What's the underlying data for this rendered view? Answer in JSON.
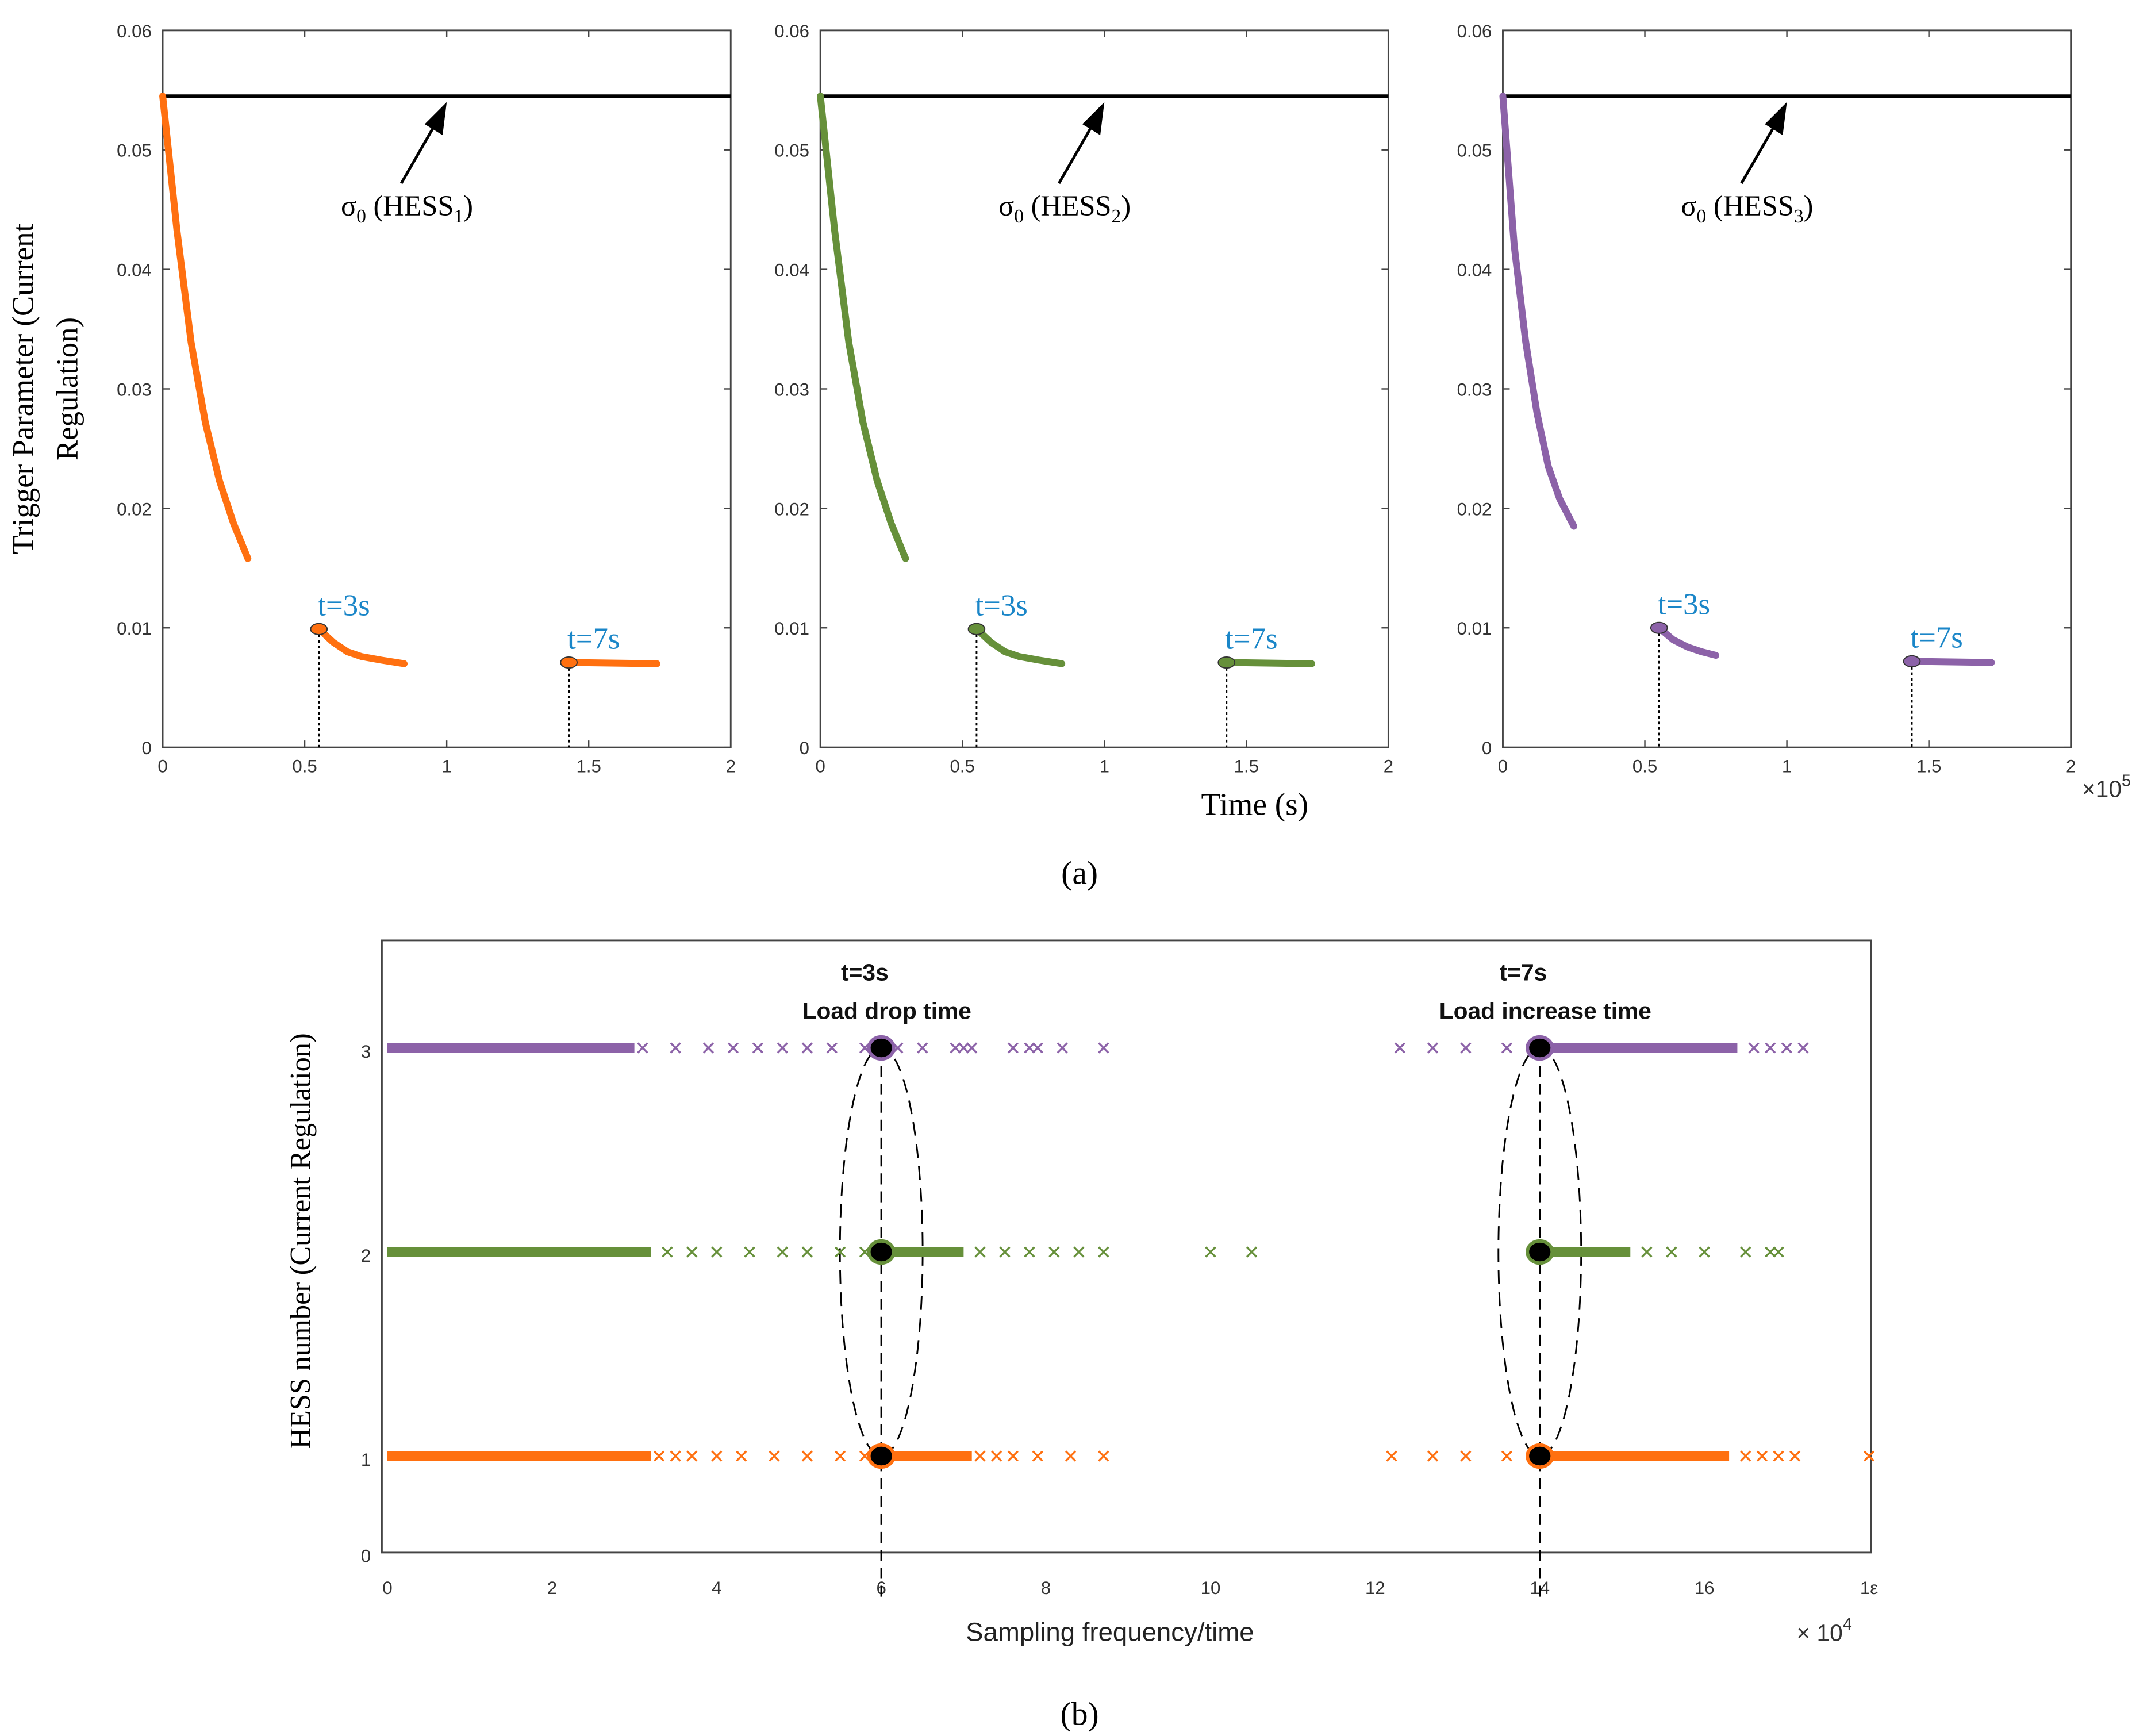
{
  "colors": {
    "hess1": "#ff7010",
    "hess2": "#66903a",
    "hess3": "#8c62a8",
    "annotation": "#1a86c8",
    "threshold": "#000000"
  },
  "figure": {
    "label_a": "(a)",
    "label_b": "(b)"
  },
  "chart_data": [
    {
      "type": "line",
      "panel": "a",
      "ylabel_line1": "Trigger Parameter (Current",
      "ylabel_line2": "Regulation)",
      "xlabel": "Time (s)",
      "x_multiplier": "×10",
      "x_multiplier_exp": "5",
      "xlim": [
        0,
        2
      ],
      "ylim": [
        0,
        0.06
      ],
      "xticks": [
        "0",
        "0.5",
        "1",
        "1.5",
        "2"
      ],
      "xtick_values": [
        0,
        0.5,
        1,
        1.5,
        2
      ],
      "yticks": [
        "0",
        "0.01",
        "0.02",
        "0.03",
        "0.04",
        "0.05",
        "0.06"
      ],
      "ytick_values": [
        0,
        0.01,
        0.02,
        0.03,
        0.04,
        0.05,
        0.06
      ],
      "threshold": 0.0545,
      "subplots": [
        {
          "name": "HESS1",
          "threshold_label": "σ",
          "threshold_sub0": "0",
          "threshold_label2": " (HESS",
          "threshold_sub": "1",
          "threshold_close": ")",
          "color_key": "hess1",
          "segments": [
            [
              [
                0,
                0.0545
              ],
              [
                0.05,
                0.0433
              ],
              [
                0.1,
                0.0339
              ],
              [
                0.15,
                0.0272
              ],
              [
                0.2,
                0.0223
              ],
              [
                0.25,
                0.0187
              ],
              [
                0.3,
                0.0158
              ]
            ],
            [
              [
                0.55,
                0.0099
              ],
              [
                0.6,
                0.0088
              ],
              [
                0.65,
                0.008
              ],
              [
                0.7,
                0.0076
              ],
              [
                0.77,
                0.0073
              ],
              [
                0.85,
                0.007
              ]
            ],
            [
              [
                1.43,
                0.0071
              ],
              [
                1.74,
                0.007
              ]
            ]
          ],
          "events": [
            {
              "x": 0.55,
              "y": 0.0099,
              "label": "t=3s"
            },
            {
              "x": 1.43,
              "y": 0.0071,
              "label": "t=7s"
            }
          ]
        },
        {
          "name": "HESS2",
          "threshold_label": "σ",
          "threshold_sub0": "0",
          "threshold_label2": " (HESS",
          "threshold_sub": "2",
          "threshold_close": ")",
          "color_key": "hess2",
          "segments": [
            [
              [
                0,
                0.0545
              ],
              [
                0.05,
                0.0433
              ],
              [
                0.1,
                0.0339
              ],
              [
                0.15,
                0.0272
              ],
              [
                0.2,
                0.0223
              ],
              [
                0.25,
                0.0187
              ],
              [
                0.3,
                0.0158
              ]
            ],
            [
              [
                0.55,
                0.0099
              ],
              [
                0.6,
                0.0088
              ],
              [
                0.65,
                0.008
              ],
              [
                0.7,
                0.0076
              ],
              [
                0.77,
                0.0073
              ],
              [
                0.85,
                0.007
              ]
            ],
            [
              [
                1.43,
                0.0071
              ],
              [
                1.73,
                0.007
              ]
            ]
          ],
          "events": [
            {
              "x": 0.55,
              "y": 0.0099,
              "label": "t=3s"
            },
            {
              "x": 1.43,
              "y": 0.0071,
              "label": "t=7s"
            }
          ]
        },
        {
          "name": "HESS3",
          "threshold_label": "σ",
          "threshold_sub0": "0",
          "threshold_label2": " (HESS",
          "threshold_sub": "3",
          "threshold_close": ")",
          "color_key": "hess3",
          "segments": [
            [
              [
                0,
                0.0545
              ],
              [
                0.04,
                0.042
              ],
              [
                0.08,
                0.034
              ],
              [
                0.12,
                0.028
              ],
              [
                0.16,
                0.0235
              ],
              [
                0.2,
                0.0208
              ],
              [
                0.25,
                0.0185
              ]
            ],
            [
              [
                0.55,
                0.01
              ],
              [
                0.6,
                0.009
              ],
              [
                0.65,
                0.0084
              ],
              [
                0.7,
                0.008
              ],
              [
                0.75,
                0.0077
              ]
            ],
            [
              [
                1.44,
                0.0072
              ],
              [
                1.72,
                0.0071
              ]
            ]
          ],
          "events": [
            {
              "x": 0.55,
              "y": 0.01,
              "label": "t=3s"
            },
            {
              "x": 1.44,
              "y": 0.0072,
              "label": "t=7s"
            }
          ]
        }
      ]
    },
    {
      "type": "scatter",
      "panel": "b",
      "xlabel": "Sampling frequency/time",
      "ylabel": "HESS number (Current Regulation)",
      "x_multiplier": "× 10",
      "x_multiplier_exp": "4",
      "xlim": [
        0,
        18
      ],
      "xticks": [
        "0",
        "2",
        "4",
        "6",
        "8",
        "10",
        "12",
        "14",
        "16",
        "1ε"
      ],
      "xtick_values": [
        0,
        2,
        4,
        6,
        8,
        10,
        12,
        14,
        16,
        18
      ],
      "yticks": [
        "0",
        "1",
        "2",
        "3"
      ],
      "ytick_values": [
        0,
        1,
        2,
        3
      ],
      "events": [
        {
          "x": 6,
          "label": "t=3s",
          "sublabel": "Load drop time"
        },
        {
          "x": 14,
          "label": "t=7s",
          "sublabel": "Load increase time"
        }
      ],
      "series": [
        {
          "name": "HESS1",
          "y": 1,
          "color_key": "hess1",
          "dense_ranges": [
            [
              0,
              3.2
            ],
            [
              6,
              7.1
            ],
            [
              14,
              16.3
            ]
          ],
          "crosses": [
            3.3,
            3.5,
            3.7,
            4.0,
            4.3,
            4.7,
            5.1,
            5.5,
            5.8,
            7.2,
            7.4,
            7.6,
            7.9,
            8.3,
            8.7,
            12.2,
            12.7,
            13.1,
            13.6,
            16.5,
            16.7,
            16.9,
            17.1,
            18.0
          ],
          "markers": [
            6,
            14
          ]
        },
        {
          "name": "HESS2",
          "y": 2,
          "color_key": "hess2",
          "dense_ranges": [
            [
              0,
              3.2
            ],
            [
              6,
              7.0
            ],
            [
              14,
              15.1
            ]
          ],
          "crosses": [
            3.4,
            3.7,
            4.0,
            4.4,
            4.8,
            5.1,
            5.5,
            5.8,
            7.2,
            7.5,
            7.8,
            8.1,
            8.4,
            8.7,
            10.0,
            10.5,
            15.3,
            15.6,
            16.0,
            16.5,
            16.8,
            16.9
          ],
          "markers": [
            6,
            14
          ]
        },
        {
          "name": "HESS3",
          "y": 3,
          "color_key": "hess3",
          "dense_ranges": [
            [
              0,
              3.0
            ],
            [
              14,
              16.4
            ]
          ],
          "crosses": [
            3.1,
            3.5,
            3.9,
            4.2,
            4.5,
            4.8,
            5.1,
            5.4,
            5.8,
            6.2,
            6.5,
            6.9,
            7.0,
            7.1,
            7.6,
            7.8,
            7.9,
            8.2,
            8.7,
            12.3,
            12.7,
            13.1,
            13.6,
            16.6,
            16.8,
            17.0,
            17.2
          ],
          "markers": [
            6,
            14
          ]
        }
      ]
    }
  ]
}
